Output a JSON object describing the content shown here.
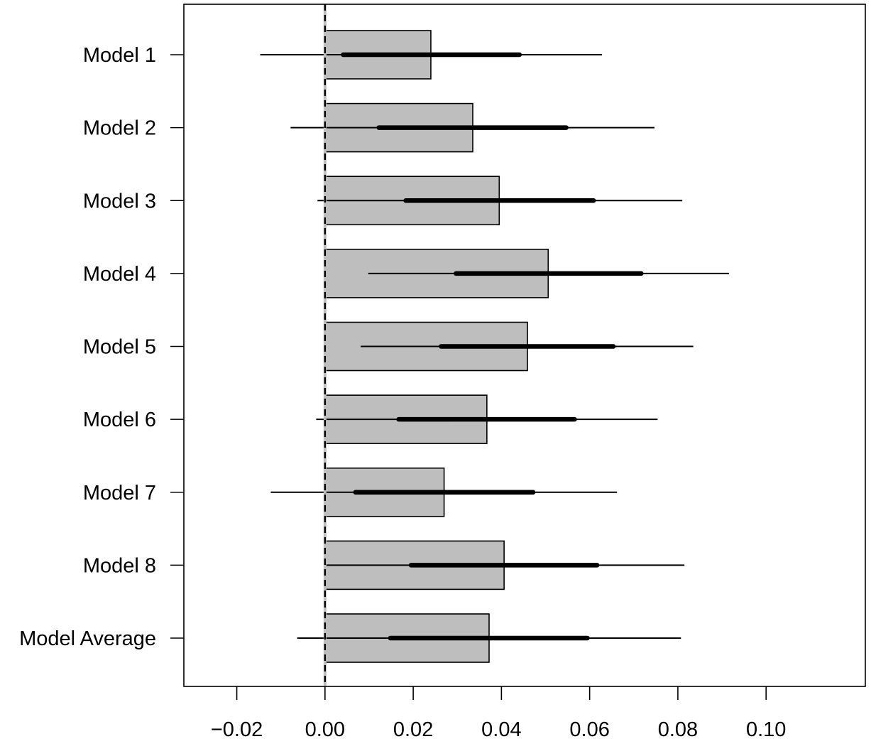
{
  "chart_data": {
    "type": "bar",
    "orientation": "horizontal",
    "title": "",
    "xlabel": "",
    "ylabel": "",
    "xlim": [
      -0.032,
      0.1225
    ],
    "grid": false,
    "legend": "none",
    "reference_line": 0,
    "categories": [
      "Model 1",
      "Model 2",
      "Model 3",
      "Model 4",
      "Model 5",
      "Model 6",
      "Model 7",
      "Model 8",
      "Model Average"
    ],
    "values": [
      0.024,
      0.0335,
      0.0395,
      0.0506,
      0.0459,
      0.0367,
      0.027,
      0.0406,
      0.0372
    ],
    "inner_interval_low": [
      0.0041,
      0.0122,
      0.0183,
      0.0297,
      0.0263,
      0.0167,
      0.0069,
      0.0195,
      0.0148
    ],
    "inner_interval_high": [
      0.0441,
      0.0547,
      0.0609,
      0.0717,
      0.0654,
      0.0566,
      0.0472,
      0.0617,
      0.0595
    ],
    "outer_interval_low": [
      -0.0147,
      -0.0078,
      -0.0017,
      0.0098,
      0.0081,
      -0.002,
      -0.0123,
      -0.0003,
      -0.0063
    ],
    "outer_interval_high": [
      0.0628,
      0.0747,
      0.081,
      0.0916,
      0.0835,
      0.0754,
      0.0662,
      0.0815,
      0.0807
    ],
    "x_ticks": [
      -0.02,
      0.0,
      0.02,
      0.04,
      0.06,
      0.08,
      0.1
    ],
    "x_tick_labels": [
      "−0.02",
      "0.00",
      "0.02",
      "0.04",
      "0.06",
      "0.08",
      "0.10"
    ],
    "colors": {
      "bar_fill": "#bebebe",
      "bar_stroke": "#000000",
      "interval": "#000000",
      "zero_line": "#000000",
      "zero_line_under": "#bebebe"
    }
  }
}
